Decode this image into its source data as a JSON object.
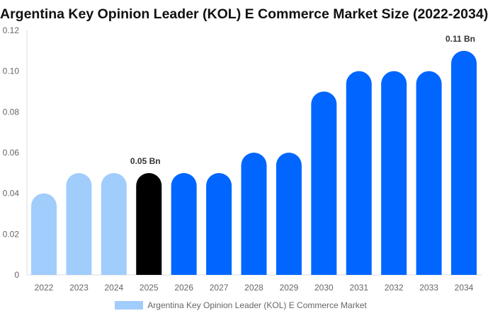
{
  "chart_data": {
    "type": "bar",
    "title": "Argentina Key Opinion Leader (KOL) E Commerce Market Size (2022-2034)",
    "categories": [
      "2022",
      "2023",
      "2024",
      "2025",
      "2026",
      "2027",
      "2028",
      "2029",
      "2030",
      "2031",
      "2032",
      "2033",
      "2034"
    ],
    "series": [
      {
        "name": "Argentina Key Opinion Leader (KOL) E Commerce Market",
        "values": [
          0.04,
          0.05,
          0.05,
          0.05,
          0.05,
          0.05,
          0.06,
          0.06,
          0.09,
          0.1,
          0.1,
          0.1,
          0.11
        ]
      }
    ],
    "ylim": [
      0,
      0.12
    ],
    "yticks": [
      "0",
      "0.02",
      "0.04",
      "0.06",
      "0.08",
      "0.10",
      "0.12"
    ],
    "data_labels": [
      {
        "category": "2025",
        "text": "0.05 Bn"
      },
      {
        "category": "2034",
        "text": "0.11 Bn"
      }
    ],
    "colors": {
      "historic": "#a0cdfc",
      "base_year": "#000000",
      "forecast": "#0066ff"
    },
    "historic_years": [
      "2022",
      "2023",
      "2024"
    ],
    "base_year": "2025",
    "grid": false,
    "legend_position": "bottom"
  }
}
